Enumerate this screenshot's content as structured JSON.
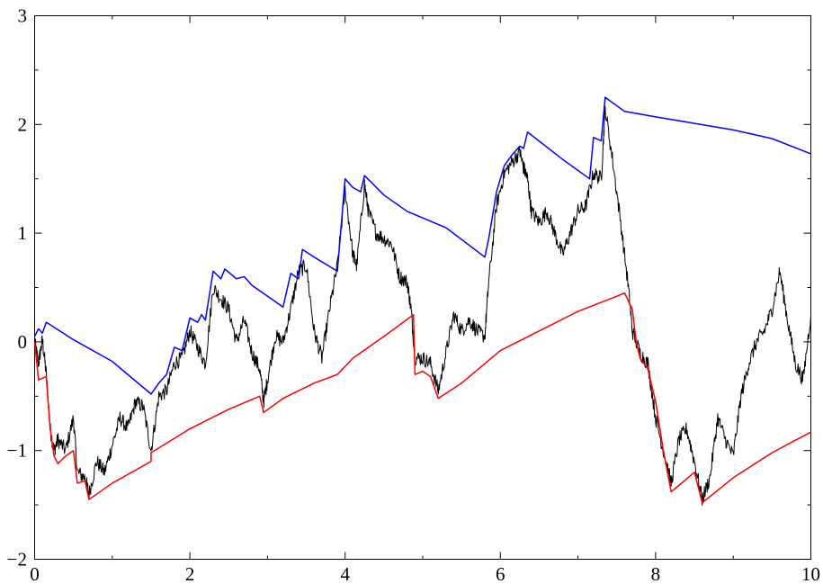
{
  "chart_data": {
    "type": "line",
    "title": "",
    "xlabel": "",
    "ylabel": "",
    "xlim": [
      0,
      10
    ],
    "ylim": [
      -2,
      3
    ],
    "grid": false,
    "legend": "none",
    "x_ticks": [
      {
        "value": 0,
        "label": "0"
      },
      {
        "value": 2,
        "label": "2"
      },
      {
        "value": 4,
        "label": "4"
      },
      {
        "value": 6,
        "label": "6"
      },
      {
        "value": 8,
        "label": "8"
      },
      {
        "value": 10,
        "label": "10"
      }
    ],
    "y_ticks": [
      {
        "value": -2,
        "label": "−2"
      },
      {
        "value": -1,
        "label": "−1"
      },
      {
        "value": 0,
        "label": "0"
      },
      {
        "value": 1,
        "label": "1"
      },
      {
        "value": 2,
        "label": "2"
      },
      {
        "value": 3,
        "label": "3"
      }
    ],
    "series": [
      {
        "color": "#0000ff",
        "points": [
          [
            0,
            0.05
          ],
          [
            0.05,
            0.12
          ],
          [
            0.1,
            0.08
          ],
          [
            0.15,
            0.18
          ],
          [
            0.5,
            0.02
          ],
          [
            1.0,
            -0.18
          ],
          [
            1.5,
            -0.48
          ],
          [
            1.6,
            -0.38
          ],
          [
            1.7,
            -0.3
          ],
          [
            1.8,
            -0.05
          ],
          [
            1.9,
            -0.08
          ],
          [
            2.0,
            0.22
          ],
          [
            2.1,
            0.18
          ],
          [
            2.15,
            0.25
          ],
          [
            2.2,
            0.2
          ],
          [
            2.3,
            0.65
          ],
          [
            2.4,
            0.58
          ],
          [
            2.45,
            0.67
          ],
          [
            2.6,
            0.58
          ],
          [
            2.7,
            0.6
          ],
          [
            2.8,
            0.52
          ],
          [
            3.0,
            0.42
          ],
          [
            3.2,
            0.32
          ],
          [
            3.3,
            0.63
          ],
          [
            3.4,
            0.58
          ],
          [
            3.45,
            0.85
          ],
          [
            3.6,
            0.78
          ],
          [
            3.9,
            0.65
          ],
          [
            4.0,
            1.5
          ],
          [
            4.1,
            1.42
          ],
          [
            4.2,
            1.38
          ],
          [
            4.25,
            1.53
          ],
          [
            4.5,
            1.35
          ],
          [
            4.8,
            1.2
          ],
          [
            5.3,
            1.05
          ],
          [
            5.8,
            0.78
          ],
          [
            5.85,
            0.95
          ],
          [
            5.95,
            1.38
          ],
          [
            6.05,
            1.62
          ],
          [
            6.15,
            1.72
          ],
          [
            6.25,
            1.8
          ],
          [
            6.3,
            1.78
          ],
          [
            6.35,
            1.93
          ],
          [
            6.8,
            1.68
          ],
          [
            7.15,
            1.5
          ],
          [
            7.2,
            1.88
          ],
          [
            7.3,
            1.85
          ],
          [
            7.35,
            2.25
          ],
          [
            7.6,
            2.12
          ],
          [
            8.0,
            2.07
          ],
          [
            8.5,
            2.01
          ],
          [
            9.0,
            1.95
          ],
          [
            9.5,
            1.87
          ],
          [
            10.0,
            1.73
          ]
        ]
      },
      {
        "color": "#ff0000",
        "points": [
          [
            0,
            0.0
          ],
          [
            0.05,
            -0.35
          ],
          [
            0.15,
            -0.32
          ],
          [
            0.2,
            -0.8
          ],
          [
            0.25,
            -1.05
          ],
          [
            0.3,
            -1.12
          ],
          [
            0.4,
            -1.05
          ],
          [
            0.5,
            -1.0
          ],
          [
            0.55,
            -1.3
          ],
          [
            0.65,
            -1.28
          ],
          [
            0.7,
            -1.45
          ],
          [
            1.0,
            -1.3
          ],
          [
            1.5,
            -1.1
          ],
          [
            1.5,
            -1.02
          ],
          [
            2.0,
            -0.8
          ],
          [
            2.5,
            -0.62
          ],
          [
            2.9,
            -0.5
          ],
          [
            2.95,
            -0.65
          ],
          [
            3.2,
            -0.52
          ],
          [
            3.6,
            -0.38
          ],
          [
            3.9,
            -0.3
          ],
          [
            4.1,
            -0.15
          ],
          [
            4.5,
            0.05
          ],
          [
            4.88,
            0.25
          ],
          [
            4.9,
            -0.3
          ],
          [
            5.0,
            -0.27
          ],
          [
            5.1,
            -0.32
          ],
          [
            5.2,
            -0.52
          ],
          [
            5.5,
            -0.38
          ],
          [
            5.8,
            -0.2
          ],
          [
            6.0,
            -0.08
          ],
          [
            6.5,
            0.1
          ],
          [
            7.0,
            0.28
          ],
          [
            7.5,
            0.42
          ],
          [
            7.6,
            0.45
          ],
          [
            7.7,
            0.3
          ],
          [
            7.75,
            0.0
          ],
          [
            7.8,
            -0.15
          ],
          [
            7.9,
            -0.25
          ],
          [
            8.0,
            -0.55
          ],
          [
            8.1,
            -1.0
          ],
          [
            8.2,
            -1.38
          ],
          [
            8.5,
            -1.2
          ],
          [
            8.6,
            -1.48
          ],
          [
            9.0,
            -1.25
          ],
          [
            9.5,
            -1.02
          ],
          [
            10.0,
            -0.83
          ]
        ]
      },
      {
        "color": "#000000",
        "noise_amplitude": 0.07,
        "points": [
          [
            0,
            0.0
          ],
          [
            0.05,
            -0.2
          ],
          [
            0.1,
            0.02
          ],
          [
            0.15,
            -0.3
          ],
          [
            0.2,
            -0.8
          ],
          [
            0.25,
            -1.0
          ],
          [
            0.3,
            -0.9
          ],
          [
            0.4,
            -1.0
          ],
          [
            0.5,
            -0.7
          ],
          [
            0.55,
            -1.2
          ],
          [
            0.65,
            -1.25
          ],
          [
            0.7,
            -1.4
          ],
          [
            0.8,
            -1.1
          ],
          [
            0.9,
            -1.2
          ],
          [
            1.0,
            -0.95
          ],
          [
            1.1,
            -0.7
          ],
          [
            1.2,
            -0.8
          ],
          [
            1.3,
            -0.55
          ],
          [
            1.4,
            -0.6
          ],
          [
            1.5,
            -1.0
          ],
          [
            1.6,
            -0.5
          ],
          [
            1.7,
            -0.45
          ],
          [
            1.8,
            -0.2
          ],
          [
            1.9,
            -0.15
          ],
          [
            2.0,
            0.1
          ],
          [
            2.1,
            -0.05
          ],
          [
            2.2,
            -0.2
          ],
          [
            2.3,
            0.5
          ],
          [
            2.4,
            0.4
          ],
          [
            2.5,
            0.3
          ],
          [
            2.6,
            0.0
          ],
          [
            2.7,
            0.2
          ],
          [
            2.8,
            -0.1
          ],
          [
            2.9,
            -0.25
          ],
          [
            2.95,
            -0.55
          ],
          [
            3.0,
            -0.35
          ],
          [
            3.1,
            0.05
          ],
          [
            3.2,
            0.0
          ],
          [
            3.3,
            0.3
          ],
          [
            3.4,
            0.65
          ],
          [
            3.5,
            0.7
          ],
          [
            3.6,
            0.1
          ],
          [
            3.7,
            -0.15
          ],
          [
            3.8,
            0.3
          ],
          [
            3.9,
            0.7
          ],
          [
            4.0,
            1.4
          ],
          [
            4.1,
            0.8
          ],
          [
            4.15,
            0.7
          ],
          [
            4.25,
            1.45
          ],
          [
            4.3,
            1.2
          ],
          [
            4.4,
            1.0
          ],
          [
            4.5,
            0.95
          ],
          [
            4.6,
            0.9
          ],
          [
            4.7,
            0.6
          ],
          [
            4.8,
            0.55
          ],
          [
            4.85,
            0.3
          ],
          [
            4.9,
            -0.15
          ],
          [
            5.0,
            -0.15
          ],
          [
            5.1,
            -0.2
          ],
          [
            5.2,
            -0.45
          ],
          [
            5.3,
            -0.1
          ],
          [
            5.4,
            0.25
          ],
          [
            5.5,
            0.1
          ],
          [
            5.6,
            0.2
          ],
          [
            5.7,
            0.1
          ],
          [
            5.8,
            0.05
          ],
          [
            5.85,
            0.55
          ],
          [
            5.95,
            1.25
          ],
          [
            6.05,
            1.55
          ],
          [
            6.15,
            1.65
          ],
          [
            6.25,
            1.75
          ],
          [
            6.3,
            1.6
          ],
          [
            6.35,
            1.5
          ],
          [
            6.4,
            1.2
          ],
          [
            6.5,
            1.1
          ],
          [
            6.6,
            1.2
          ],
          [
            6.7,
            1.0
          ],
          [
            6.8,
            0.8
          ],
          [
            6.9,
            1.0
          ],
          [
            7.0,
            1.2
          ],
          [
            7.1,
            1.25
          ],
          [
            7.2,
            1.55
          ],
          [
            7.3,
            1.5
          ],
          [
            7.35,
            2.15
          ],
          [
            7.45,
            1.65
          ],
          [
            7.55,
            1.1
          ],
          [
            7.65,
            0.5
          ],
          [
            7.7,
            0.1
          ],
          [
            7.8,
            -0.1
          ],
          [
            7.9,
            -0.2
          ],
          [
            8.0,
            -0.7
          ],
          [
            8.1,
            -1.0
          ],
          [
            8.2,
            -1.3
          ],
          [
            8.3,
            -0.9
          ],
          [
            8.4,
            -0.8
          ],
          [
            8.5,
            -1.1
          ],
          [
            8.6,
            -1.45
          ],
          [
            8.7,
            -1.25
          ],
          [
            8.8,
            -0.7
          ],
          [
            8.9,
            -0.9
          ],
          [
            9.0,
            -1.05
          ],
          [
            9.1,
            -0.5
          ],
          [
            9.2,
            -0.2
          ],
          [
            9.3,
            0.0
          ],
          [
            9.4,
            0.1
          ],
          [
            9.5,
            0.3
          ],
          [
            9.6,
            0.65
          ],
          [
            9.7,
            0.2
          ],
          [
            9.8,
            -0.2
          ],
          [
            9.9,
            -0.35
          ],
          [
            10.0,
            0.25
          ]
        ]
      }
    ]
  }
}
